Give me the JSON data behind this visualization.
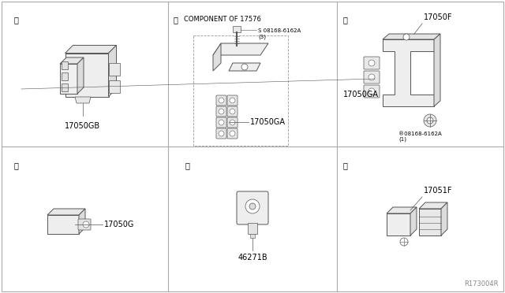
{
  "bg_color": "#ffffff",
  "line_color": "#555555",
  "text_color": "#000000",
  "fig_width": 6.4,
  "fig_height": 3.72,
  "dpi": 100,
  "panels": {
    "a": {
      "label": "ⓐ",
      "part": "17050GB"
    },
    "b": {
      "label": "ⓑ",
      "part": "17050GA",
      "note": "COMPONENT OF 17576",
      "screw": "®08168-6162A\n(3)"
    },
    "c": {
      "label": "ⓒ",
      "part1": "17050F",
      "part2": "17050GA",
      "screw": "®08168-6162A\n(1)"
    },
    "d": {
      "label": "ⓓ",
      "part": "17050G"
    },
    "e": {
      "label": "ⓔ",
      "part": "46271B"
    },
    "f": {
      "label": "ⓕ",
      "part": "17051F"
    }
  },
  "watermark": "R173004R"
}
